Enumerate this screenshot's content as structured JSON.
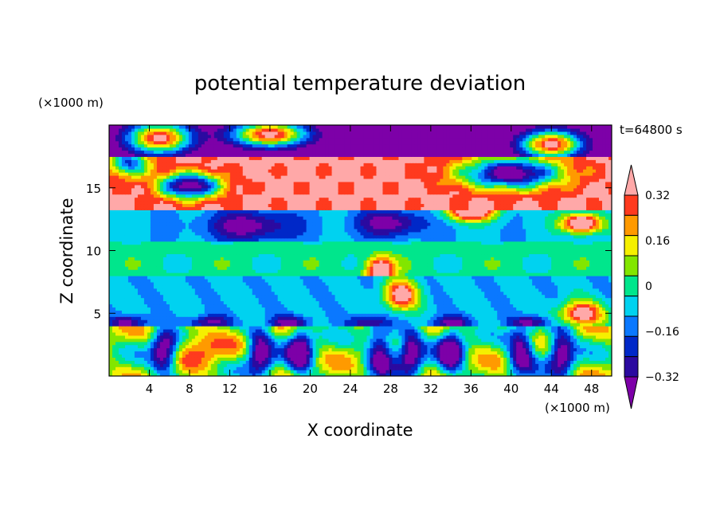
{
  "chart_data": {
    "type": "heatmap",
    "title": "potential temperature deviation",
    "time_label": "t=64800 s",
    "xlabel": "X coordinate",
    "ylabel": "Z coordinate",
    "x_unit": "(×1000 m)",
    "y_unit": "(×1000 m)",
    "xlim": [
      0,
      50
    ],
    "ylim": [
      0,
      20
    ],
    "x_ticks": [
      4,
      8,
      12,
      16,
      20,
      24,
      28,
      32,
      36,
      40,
      44,
      48
    ],
    "y_ticks": [
      5,
      10,
      15
    ],
    "colorbar": {
      "labels": [
        "0.32",
        "0.16",
        "0",
        "−0.16",
        "−0.32"
      ],
      "label_values": [
        0.32,
        0.16,
        0,
        -0.16,
        -0.32
      ],
      "levels": [
        -0.4,
        -0.32,
        -0.24,
        -0.16,
        -0.08,
        0,
        0.08,
        0.16,
        0.24,
        0.32,
        0.4
      ],
      "colors": [
        "#7d00a8",
        "#2b0aa0",
        "#0028c8",
        "#0a78ff",
        "#00d2f0",
        "#00e68c",
        "#82e600",
        "#f5f000",
        "#ff9a00",
        "#ff3a1e",
        "#ffa8a8"
      ],
      "extend": "both"
    },
    "field_note_regions": [
      {
        "x": [
          0,
          50
        ],
        "z": [
          17.5,
          20
        ],
        "value": -0.45
      },
      {
        "x": [
          0,
          50
        ],
        "z": [
          13,
          17.5
        ],
        "value": 0.45
      },
      {
        "x": [
          10,
          34
        ],
        "z": [
          11,
          14
        ],
        "value": -0.3
      },
      {
        "x": [
          0,
          50
        ],
        "z": [
          8,
          11
        ],
        "value": 0.02
      },
      {
        "x": [
          0,
          50
        ],
        "z": [
          4,
          8
        ],
        "value": -0.05
      },
      {
        "x": [
          0,
          50
        ],
        "z": [
          0,
          4
        ],
        "value": 0.25
      }
    ]
  }
}
